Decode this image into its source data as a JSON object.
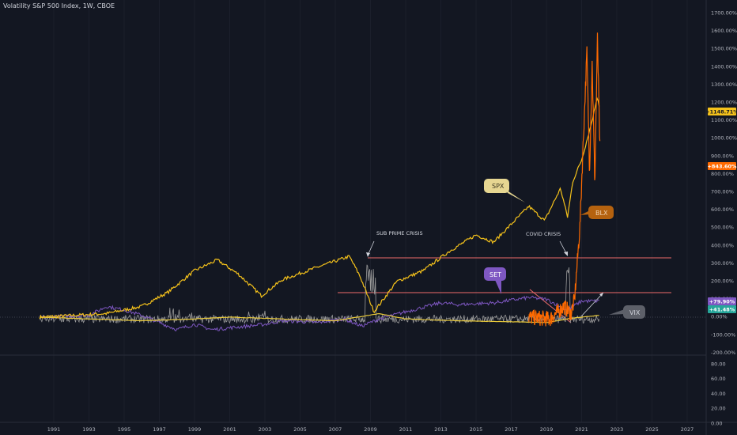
{
  "header": {
    "title": "Volatility S&P 500 Index, 1W, CBOE"
  },
  "colors": {
    "background": "#131722",
    "spx": "#f5c21b",
    "blx": "#ff6a00",
    "set": "#7e57c2",
    "vix": "#9a9a9a",
    "sma": "#e8c93a",
    "hline": "#ef6b6b",
    "grid": "#1e2230"
  },
  "price_axis": {
    "top_labels": [
      "1700.00%",
      "1600.00%",
      "1500.00%",
      "1400.00%",
      "1300.00%",
      "1200.00%",
      "1100.00%",
      "1000.00%",
      "900.00%",
      "800.00%",
      "700.00%",
      "600.00%",
      "500.00%",
      "400.00%",
      "300.00%",
      "200.00%",
      "100.00%",
      "0.00%",
      "-100.00%",
      "-200.00%"
    ],
    "bottom_labels": [
      "80.00",
      "60.00",
      "40.00",
      "20.00",
      "0.00"
    ]
  },
  "time_axis": {
    "labels": [
      "1991",
      "1993",
      "1995",
      "1997",
      "1999",
      "2001",
      "2003",
      "2005",
      "2007",
      "2009",
      "2011",
      "2013",
      "2015",
      "2017",
      "2019",
      "2021",
      "2023",
      "2025",
      "2027"
    ]
  },
  "badges": [
    {
      "text": "+1148.71%",
      "color": "#f5c21b",
      "text_color": "#131722"
    },
    {
      "text": "+843.60%",
      "color": "#ff6a00",
      "text_color": "#ffffff"
    },
    {
      "text": "+79.90%",
      "color": "#7e57c2",
      "text_color": "#ffffff"
    },
    {
      "text": "+41.48%",
      "color": "#26a69a",
      "text_color": "#ffffff"
    }
  ],
  "annotations": {
    "subprime": "SUB PRIME CRISIS",
    "covid": "COVID CRISIS"
  },
  "callouts": {
    "spx": "SPX",
    "blx": "BLX",
    "set": "SET",
    "vix": "VIX"
  }
}
